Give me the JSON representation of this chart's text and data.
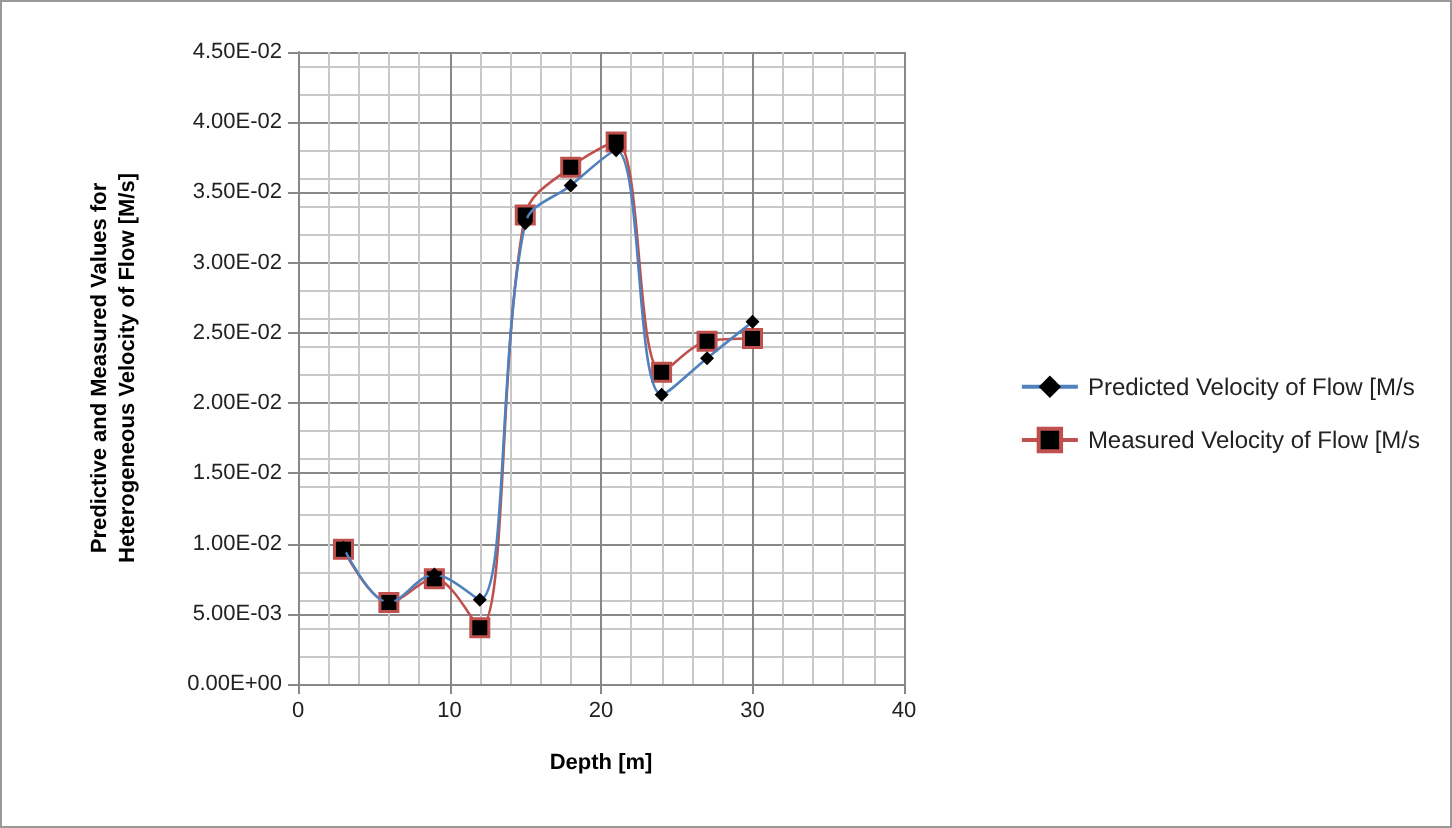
{
  "chart_data": {
    "type": "line",
    "xlabel": "Depth [m]",
    "ylabel": "Predictive and Measured Values for\nHeterogeneous Velocity of Flow [M/s]",
    "x": [
      3,
      6,
      9,
      12,
      15,
      18,
      21,
      24,
      27,
      30
    ],
    "series": [
      {
        "name": "Predicted Velocity of Flow [M/s",
        "color": "#4f81bd",
        "marker": "diamond",
        "values": [
          0.0097,
          0.0058,
          0.0078,
          0.006,
          0.0328,
          0.0355,
          0.038,
          0.0206,
          0.0232,
          0.0258
        ]
      },
      {
        "name": "Measured Velocity of Flow [M/s",
        "color": "#c0504d",
        "marker": "square",
        "values": [
          0.0096,
          0.0058,
          0.0075,
          0.004,
          0.0334,
          0.0368,
          0.0386,
          0.0222,
          0.0244,
          0.0246
        ]
      }
    ],
    "xlim": [
      0,
      40
    ],
    "xticks": [
      0,
      10,
      20,
      30,
      40
    ],
    "ylim": [
      0,
      0.045
    ],
    "yticks": [
      {
        "value": 0,
        "label": "0.00E+00"
      },
      {
        "value": 0.005,
        "label": "5.00E-03"
      },
      {
        "value": 0.01,
        "label": "1.00E-02"
      },
      {
        "value": 0.015,
        "label": "1.50E-02"
      },
      {
        "value": 0.02,
        "label": "2.00E-02"
      },
      {
        "value": 0.025,
        "label": "2.50E-02"
      },
      {
        "value": 0.03,
        "label": "3.00E-02"
      },
      {
        "value": 0.035,
        "label": "3.50E-02"
      },
      {
        "value": 0.04,
        "label": "4.00E-02"
      },
      {
        "value": 0.045,
        "label": "4.50E-02"
      }
    ],
    "grid": true,
    "legend": "right",
    "line_style": "solid"
  }
}
